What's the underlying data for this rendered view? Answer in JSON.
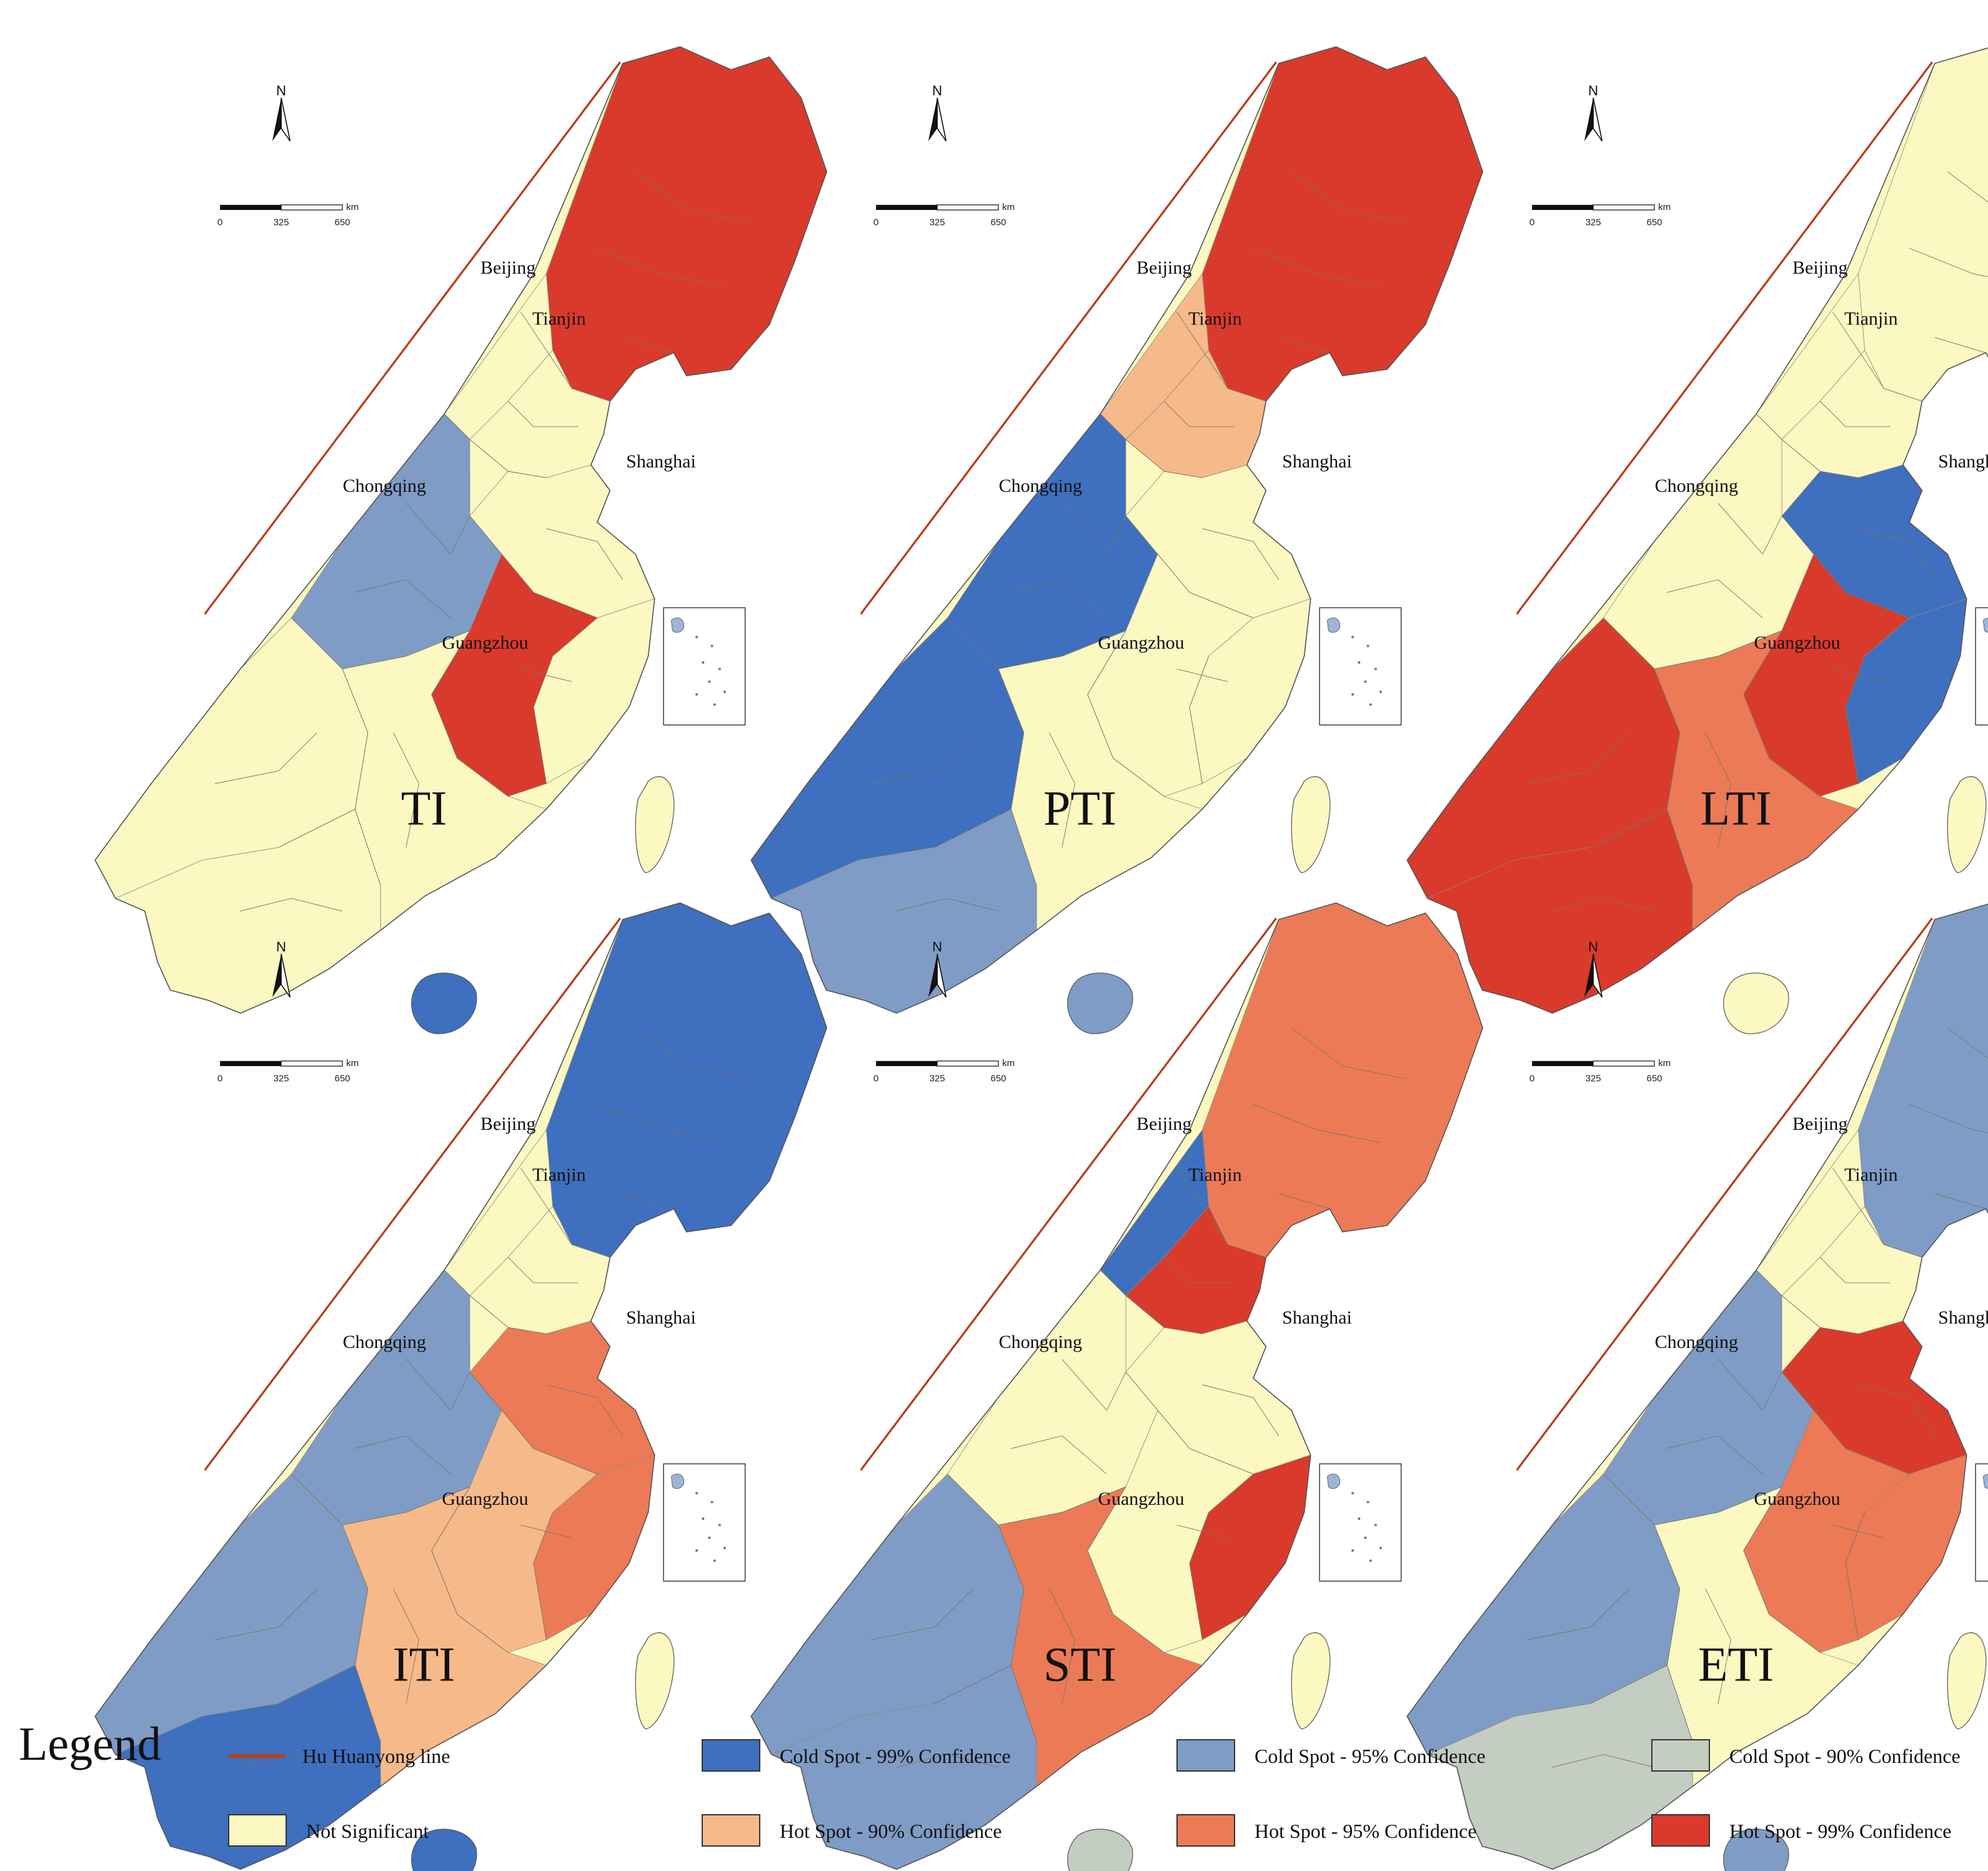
{
  "panels": [
    {
      "title": "TI",
      "fills": {
        "NE": "hot99",
        "N": "ns",
        "NC": "ns",
        "E": "ns",
        "SE": "hot99",
        "SW": "ns",
        "S": "ns",
        "W": "ns",
        "CQ": "cold95",
        "HN": "cold99",
        "NW": "ns"
      }
    },
    {
      "title": "PTI",
      "fills": {
        "NE": "hot99",
        "N": "hot90",
        "NC": "ns",
        "E": "ns",
        "SE": "ns",
        "SW": "cold99",
        "S": "ns",
        "W": "cold95",
        "CQ": "cold99",
        "HN": "cold95",
        "NW": "hot90"
      }
    },
    {
      "title": "LTI",
      "fills": {
        "NE": "ns",
        "N": "ns",
        "NC": "cold99",
        "E": "cold99",
        "SE": "hot99",
        "SW": "hot99",
        "S": "hot95",
        "W": "hot99",
        "CQ": "ns",
        "HN": "ns",
        "NW": "ns"
      }
    },
    {
      "title": "ITI",
      "fills": {
        "NE": "cold99",
        "N": "ns",
        "NC": "hot95",
        "E": "hot95",
        "SE": "hot90",
        "SW": "cold95",
        "S": "hot90",
        "W": "cold99",
        "CQ": "cold95",
        "HN": "cold99",
        "NW": "ns"
      }
    },
    {
      "title": "STI",
      "fills": {
        "NE": "hot95",
        "N": "hot99",
        "NC": "ns",
        "E": "hot99",
        "SE": "ns",
        "SW": "cold95",
        "S": "hot95",
        "W": "cold95",
        "CQ": "ns",
        "HN": "cold90",
        "NW": "cold99"
      }
    },
    {
      "title": "ETI",
      "fills": {
        "NE": "cold95",
        "N": "ns",
        "NC": "hot99",
        "E": "hot95",
        "SE": "hot95",
        "SW": "cold95",
        "S": "ns",
        "W": "cold90",
        "CQ": "cold95",
        "HN": "cold95",
        "NW": "ns"
      }
    }
  ],
  "cities": [
    "Beijing",
    "Tianjin",
    "Shanghai",
    "Chongqing",
    "Guangzhou"
  ],
  "north_label": "N",
  "scale_bar": {
    "ticks": [
      "0",
      "325",
      "650"
    ],
    "unit": "km"
  },
  "legend": {
    "title": "Legend",
    "line_label": "Hu Huanyong line",
    "line_color": "#b5401b",
    "items": [
      {
        "key": "cold99",
        "label": "Cold Spot - 99% Confidence",
        "color": "#3f6fbf"
      },
      {
        "key": "cold95",
        "label": "Cold Spot - 95% Confidence",
        "color": "#7f9cc6"
      },
      {
        "key": "cold90",
        "label": "Cold Spot - 90% Confidence",
        "color": "#c3cdc1"
      },
      {
        "key": "ns",
        "label": "Not Significant",
        "color": "#fbf8c2"
      },
      {
        "key": "hot90",
        "label": "Hot Spot - 90% Confidence",
        "color": "#f6b98a"
      },
      {
        "key": "hot95",
        "label": "Hot Spot - 95% Confidence",
        "color": "#ec7a57"
      },
      {
        "key": "hot99",
        "label": "Hot Spot - 99% Confidence",
        "color": "#d93a2c"
      }
    ]
  }
}
